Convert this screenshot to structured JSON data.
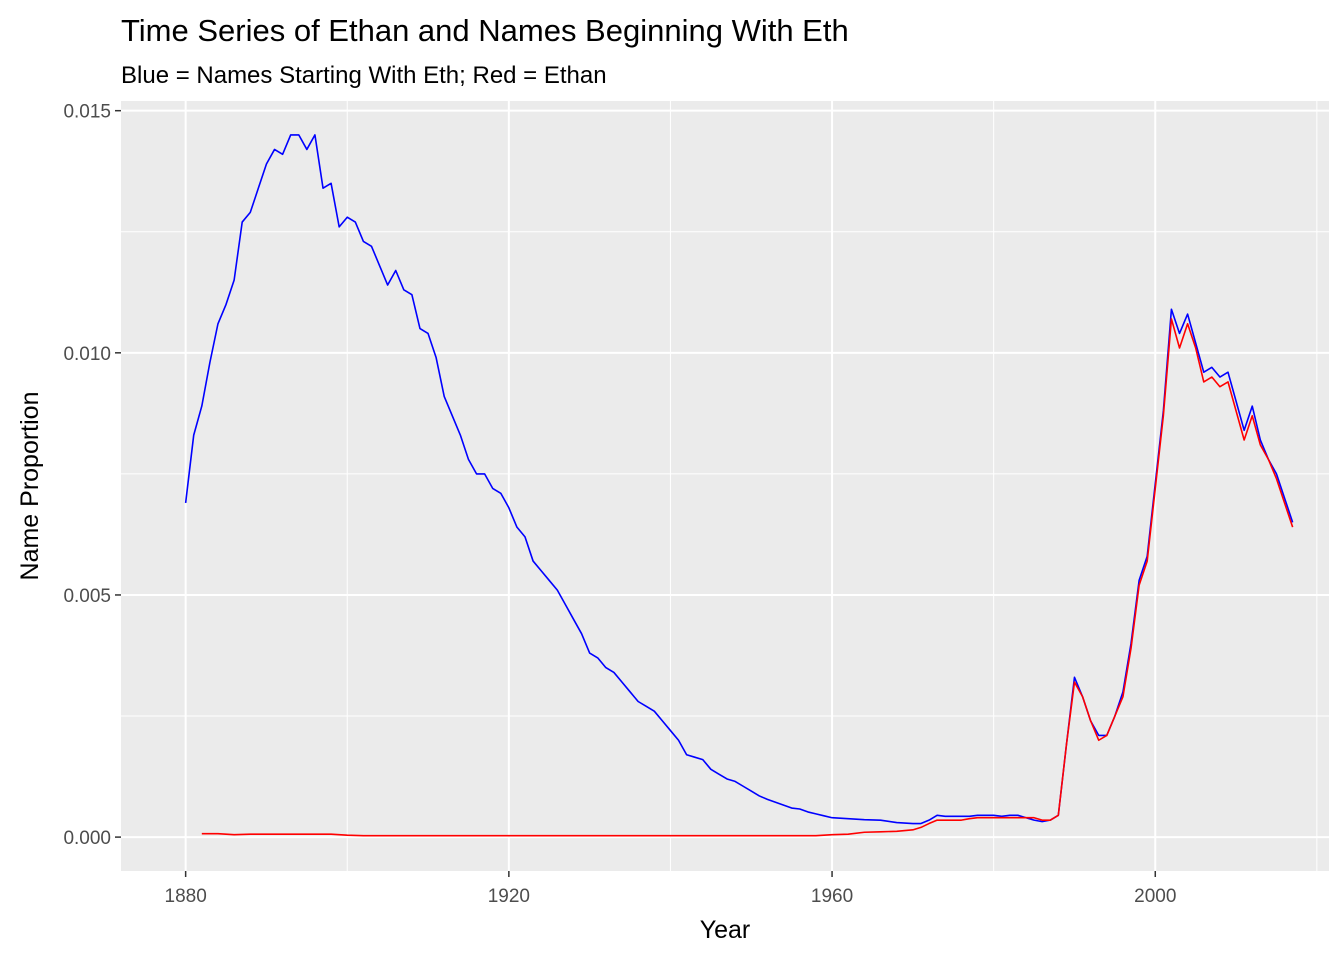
{
  "chart_data": {
    "type": "line",
    "title": "Time Series of Ethan and Names Beginning With Eth",
    "subtitle": "Blue = Names Starting With Eth; Red = Ethan",
    "xlabel": "Year",
    "ylabel": "Name Proportion",
    "xlim": [
      1872,
      2021.5
    ],
    "ylim": [
      -0.0007,
      0.0152
    ],
    "xticks": [
      1880,
      1920,
      1960,
      2000
    ],
    "xtick_labels": [
      "1880",
      "1920",
      "1960",
      "2000"
    ],
    "yticks": [
      0,
      0.005,
      0.01,
      0.015
    ],
    "ytick_labels": [
      "0.000",
      "0.005",
      "0.010",
      "0.015"
    ],
    "grid": true,
    "background": "#ebebeb",
    "gridline_color": "#ffffff",
    "legend": "none",
    "series": [
      {
        "color": "#0000ff",
        "x": [
          1880,
          1881,
          1882,
          1883,
          1884,
          1885,
          1886,
          1887,
          1888,
          1889,
          1890,
          1891,
          1892,
          1893,
          1894,
          1895,
          1896,
          1897,
          1898,
          1899,
          1900,
          1901,
          1902,
          1903,
          1904,
          1905,
          1906,
          1907,
          1908,
          1909,
          1910,
          1911,
          1912,
          1913,
          1914,
          1915,
          1916,
          1917,
          1918,
          1919,
          1920,
          1921,
          1922,
          1923,
          1924,
          1925,
          1926,
          1927,
          1928,
          1929,
          1930,
          1931,
          1932,
          1933,
          1934,
          1935,
          1936,
          1937,
          1938,
          1939,
          1940,
          1941,
          1942,
          1943,
          1944,
          1945,
          1946,
          1947,
          1948,
          1949,
          1950,
          1951,
          1952,
          1953,
          1954,
          1955,
          1956,
          1957,
          1958,
          1959,
          1960,
          1962,
          1964,
          1966,
          1968,
          1970,
          1971,
          1972,
          1973,
          1974,
          1975,
          1976,
          1977,
          1978,
          1979,
          1980,
          1981,
          1982,
          1983,
          1984,
          1985,
          1986,
          1987,
          1988,
          1989,
          1990,
          1991,
          1992,
          1993,
          1994,
          1995,
          1996,
          1997,
          1998,
          1999,
          2000,
          2001,
          2002,
          2003,
          2004,
          2005,
          2006,
          2007,
          2008,
          2009,
          2010,
          2011,
          2012,
          2013,
          2014,
          2015,
          2016,
          2017
        ],
        "y": [
          0.0069,
          0.0083,
          0.0089,
          0.0098,
          0.0106,
          0.011,
          0.0115,
          0.0127,
          0.0129,
          0.0134,
          0.0139,
          0.0142,
          0.0141,
          0.0145,
          0.0145,
          0.0142,
          0.0145,
          0.0134,
          0.0135,
          0.0126,
          0.0128,
          0.0127,
          0.0123,
          0.0122,
          0.0118,
          0.0114,
          0.0117,
          0.0113,
          0.0112,
          0.0105,
          0.0104,
          0.0099,
          0.0091,
          0.0087,
          0.0083,
          0.0078,
          0.0075,
          0.0075,
          0.0072,
          0.0071,
          0.0068,
          0.0064,
          0.0062,
          0.0057,
          0.0055,
          0.0053,
          0.0051,
          0.0048,
          0.0045,
          0.0042,
          0.0038,
          0.0037,
          0.0035,
          0.0034,
          0.0032,
          0.003,
          0.0028,
          0.0027,
          0.0026,
          0.0024,
          0.0022,
          0.002,
          0.0017,
          0.00165,
          0.0016,
          0.0014,
          0.0013,
          0.0012,
          0.00115,
          0.00105,
          0.00095,
          0.00085,
          0.00078,
          0.00072,
          0.00066,
          0.0006,
          0.00058,
          0.00052,
          0.00048,
          0.00044,
          0.0004,
          0.00038,
          0.00036,
          0.00035,
          0.0003,
          0.00028,
          0.00028,
          0.00035,
          0.00045,
          0.00043,
          0.00043,
          0.00043,
          0.00043,
          0.00045,
          0.00045,
          0.00045,
          0.00043,
          0.00045,
          0.00045,
          0.0004,
          0.00035,
          0.00032,
          0.00035,
          0.00045,
          0.0019,
          0.0033,
          0.0029,
          0.0024,
          0.0021,
          0.0021,
          0.0025,
          0.003,
          0.004,
          0.0053,
          0.0058,
          0.0073,
          0.0088,
          0.0109,
          0.0104,
          0.0108,
          0.0102,
          0.0096,
          0.0097,
          0.0095,
          0.0096,
          0.009,
          0.0084,
          0.0089,
          0.0082,
          0.0078,
          0.0075,
          0.007,
          0.0065
        ]
      },
      {
        "color": "#ff0000",
        "x": [
          1882,
          1884,
          1886,
          1888,
          1890,
          1892,
          1894,
          1896,
          1898,
          1900,
          1902,
          1904,
          1906,
          1908,
          1910,
          1920,
          1930,
          1940,
          1950,
          1958,
          1960,
          1962,
          1964,
          1966,
          1968,
          1970,
          1971,
          1972,
          1973,
          1974,
          1975,
          1976,
          1977,
          1978,
          1979,
          1980,
          1981,
          1982,
          1983,
          1984,
          1985,
          1986,
          1987,
          1988,
          1989,
          1990,
          1991,
          1992,
          1993,
          1994,
          1995,
          1996,
          1997,
          1998,
          1999,
          2000,
          2001,
          2002,
          2003,
          2004,
          2005,
          2006,
          2007,
          2008,
          2009,
          2010,
          2011,
          2012,
          2013,
          2014,
          2015,
          2016,
          2017
        ],
        "y": [
          7e-05,
          7e-05,
          5e-05,
          6e-05,
          6e-05,
          6e-05,
          6e-05,
          6e-05,
          6e-05,
          4e-05,
          3e-05,
          3e-05,
          3e-05,
          3e-05,
          3e-05,
          3e-05,
          3e-05,
          3e-05,
          3e-05,
          3e-05,
          5e-05,
          6e-05,
          0.0001,
          0.00011,
          0.00012,
          0.00015,
          0.0002,
          0.00028,
          0.00035,
          0.00035,
          0.00035,
          0.00035,
          0.00038,
          0.0004,
          0.0004,
          0.0004,
          0.0004,
          0.0004,
          0.0004,
          0.0004,
          0.0004,
          0.00035,
          0.00035,
          0.00045,
          0.0019,
          0.0032,
          0.0029,
          0.0024,
          0.002,
          0.0021,
          0.0025,
          0.0029,
          0.0039,
          0.0052,
          0.0057,
          0.0072,
          0.0087,
          0.0107,
          0.0101,
          0.0106,
          0.0101,
          0.0094,
          0.0095,
          0.0093,
          0.0094,
          0.0088,
          0.0082,
          0.0087,
          0.0081,
          0.0078,
          0.0074,
          0.0069,
          0.0064
        ]
      }
    ]
  }
}
